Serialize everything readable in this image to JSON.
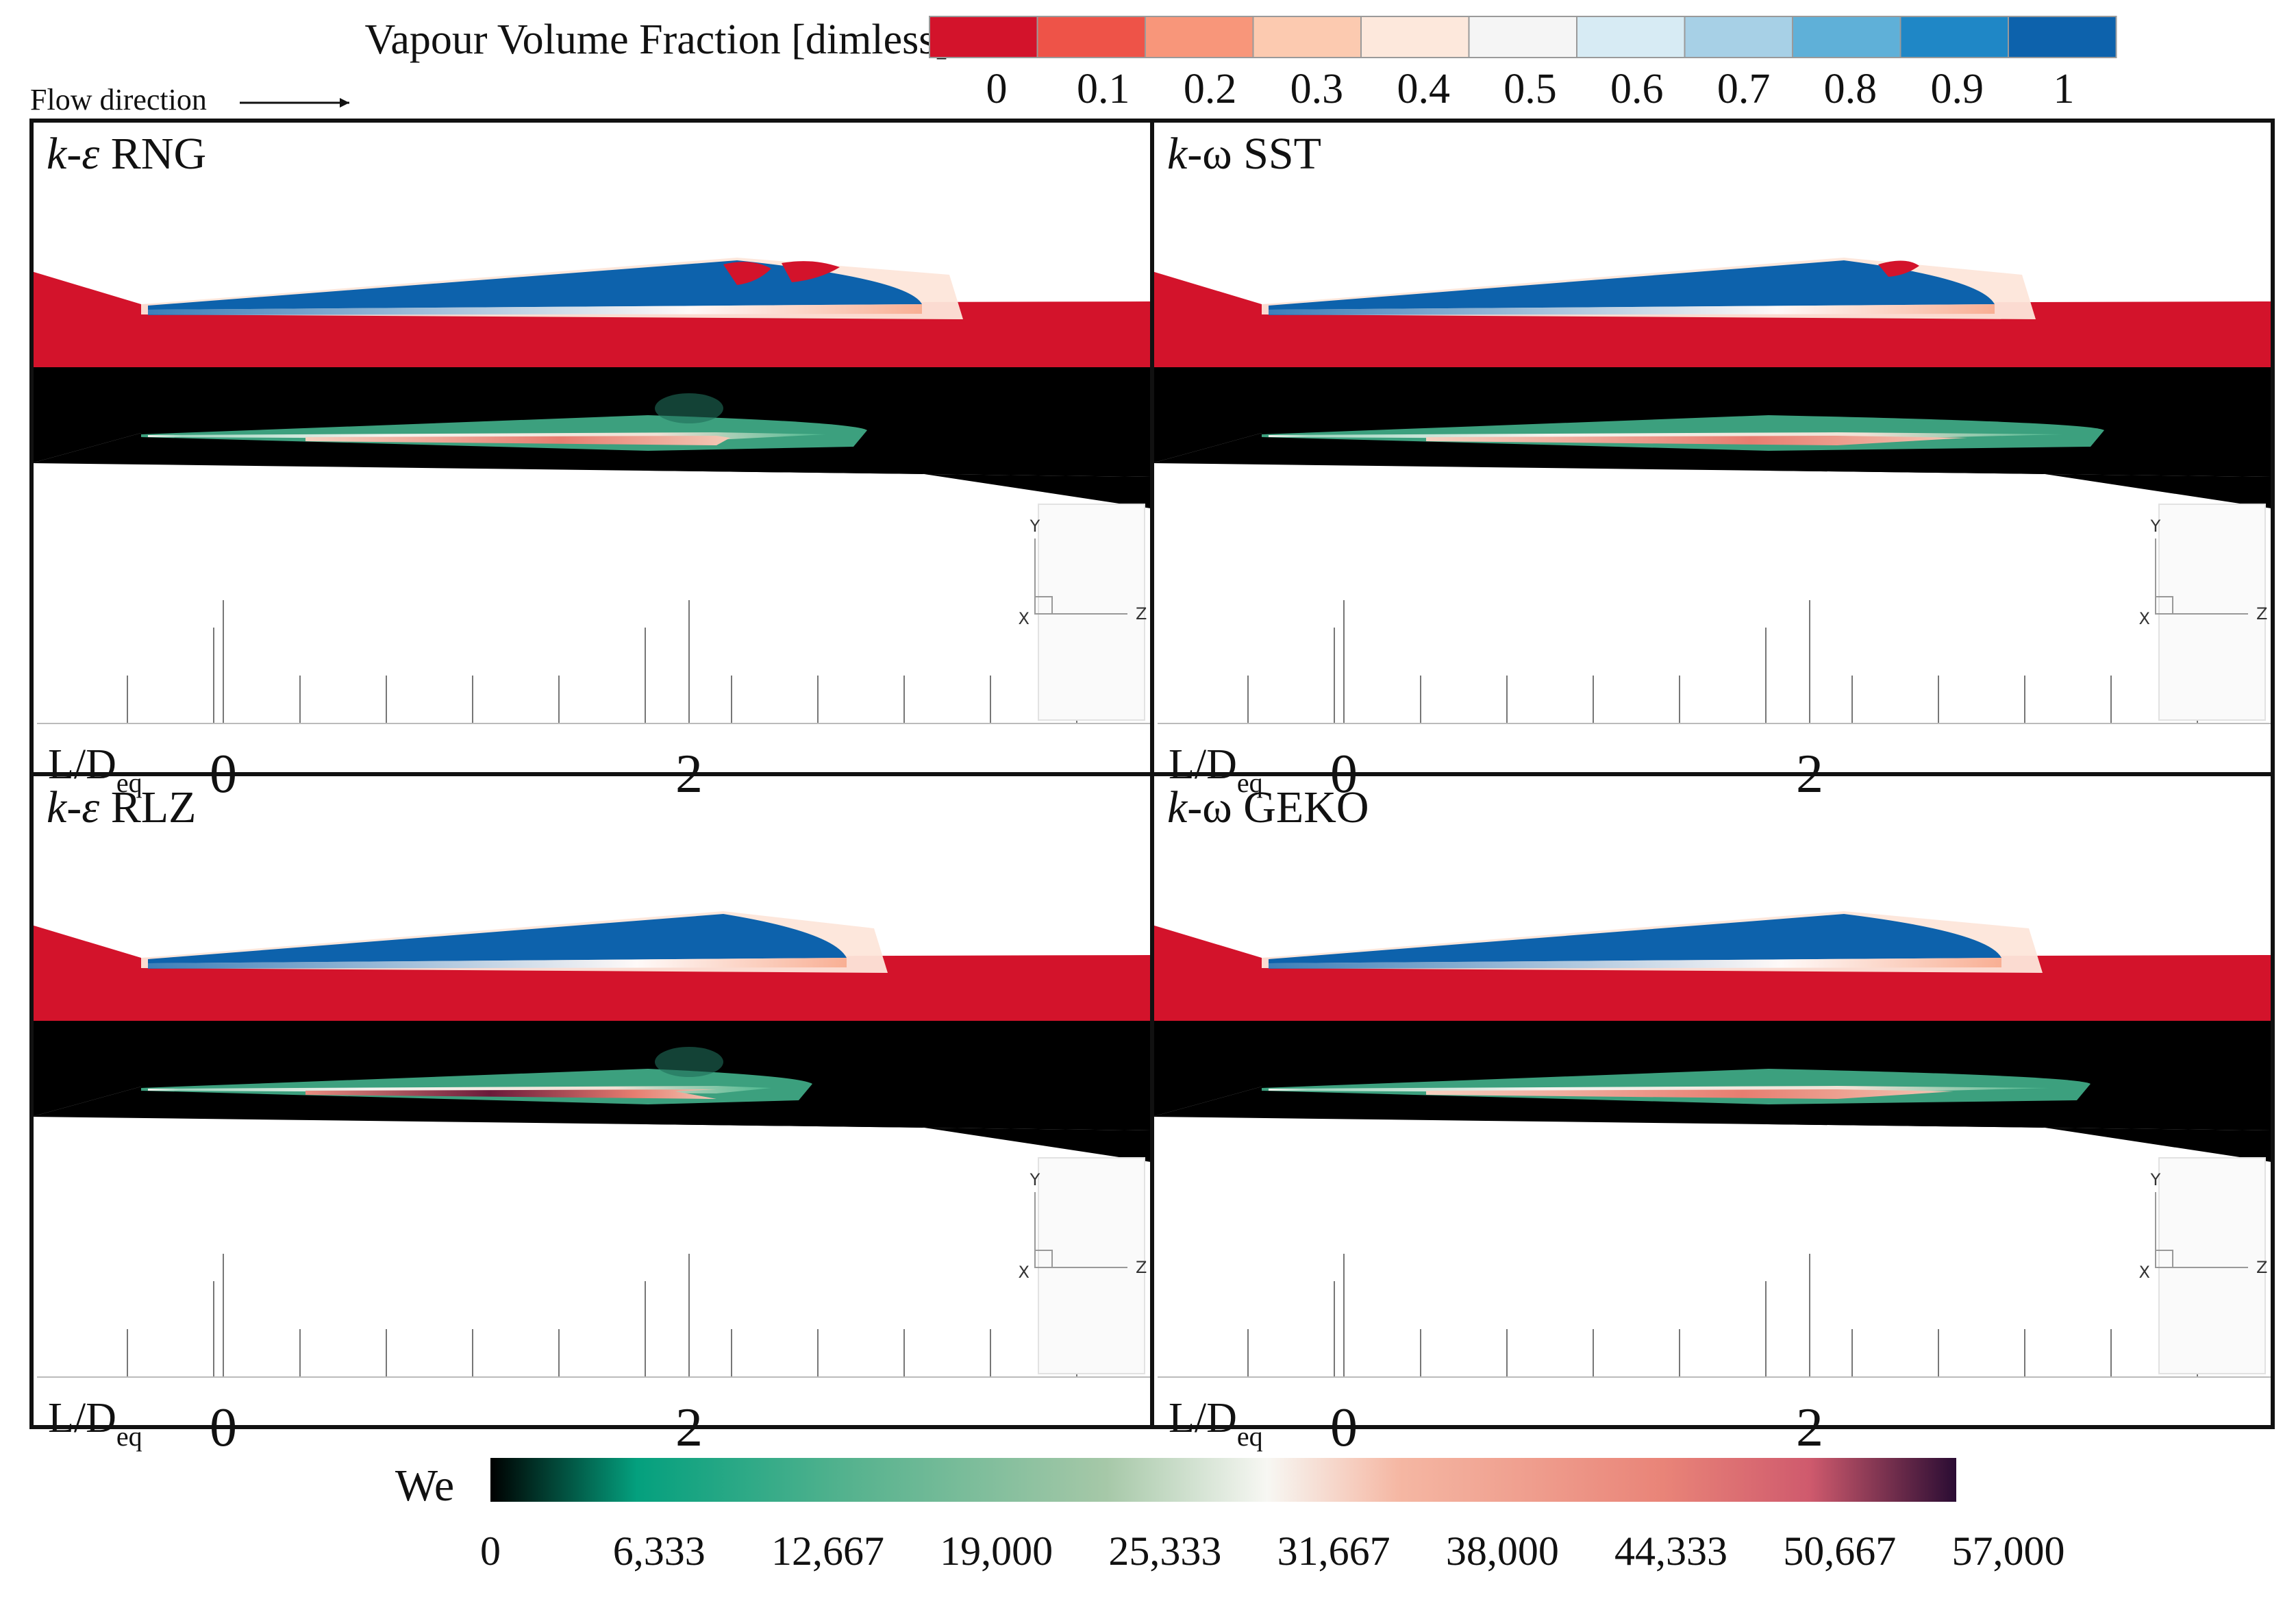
{
  "vapour_legend": {
    "title": "Vapour Volume Fraction [dimless]",
    "ticks": [
      "0",
      "0.1",
      "0.2",
      "0.3",
      "0.4",
      "0.5",
      "0.6",
      "0.7",
      "0.8",
      "0.9",
      "1"
    ],
    "colors": [
      "#d3132b",
      "#ee5348",
      "#f8967a",
      "#fccab0",
      "#fde8dc",
      "#f5f5f5",
      "#d7ebf4",
      "#a7d0e6",
      "#5fb0d8",
      "#1f87c6",
      "#0d62ac"
    ]
  },
  "flow_direction": "Flow direction",
  "panels": [
    {
      "title_italic": "k-ε",
      "title_rest": " RNG"
    },
    {
      "title_italic": "k-",
      "title_rest": "ω SST"
    },
    {
      "title_italic": "k-ε",
      "title_rest": " RLZ"
    },
    {
      "title_italic": "k-",
      "title_rest": "ω GEKO"
    }
  ],
  "axis": {
    "label": "L/D",
    "label_sub": "eq",
    "tick_labels": [
      "0",
      "2"
    ],
    "triad": {
      "y": "Y",
      "x": "X",
      "z": "Z"
    }
  },
  "we_legend": {
    "title": "We",
    "ticks": [
      "0",
      "6,333",
      "12,667",
      "19,000",
      "25,333",
      "31,667",
      "38,000",
      "44,333",
      "50,667",
      "57,000"
    ],
    "colors": [
      "#000000",
      "#04a07e",
      "#58b38f",
      "#a6c8a8",
      "#f7f7f3",
      "#f5b7a3",
      "#e98478",
      "#cf5a6d",
      "#2a0c33"
    ]
  }
}
